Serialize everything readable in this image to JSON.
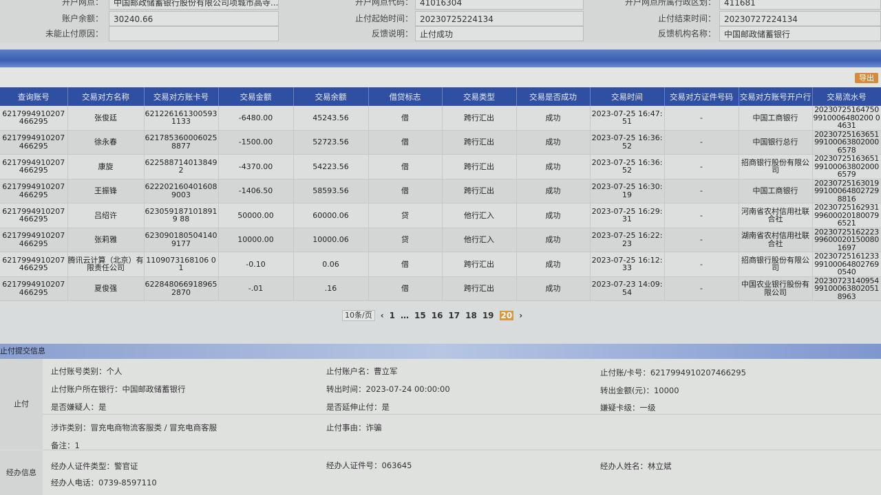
{
  "info": {
    "rows": [
      [
        {
          "label": "开户网点：",
          "value": "中国邮政储蓄银行股份有限公司项城市高寺..."
        },
        {
          "label": "开户网点代码：",
          "value": "41016304"
        },
        {
          "label": "开户网点所属行政区划：",
          "value": "411681"
        }
      ],
      [
        {
          "label": "账户余额：",
          "value": "30240.66"
        },
        {
          "label": "止付起始时间：",
          "value": "20230725224134"
        },
        {
          "label": "止付结束时间：",
          "value": "20230727224134"
        }
      ],
      [
        {
          "label": "未能止付原因：",
          "value": ""
        },
        {
          "label": "反馈说明：",
          "value": "止付成功"
        },
        {
          "label": "反馈机构名称：",
          "value": "中国邮政储蓄银行"
        }
      ]
    ]
  },
  "toolbar": {
    "export_label": "导出"
  },
  "table": {
    "headers": [
      "查询账号",
      "交易对方名称",
      "交易对方账卡号",
      "交易金额",
      "交易余额",
      "借贷标志",
      "交易类型",
      "交易是否成功",
      "交易时间",
      "交易对方证件号码",
      "交易对方账号开户行",
      "交易流水号"
    ],
    "rows": [
      [
        "6217994910207466295",
        "张俊廷",
        "6212261613005931133",
        "-6480.00",
        "45243.56",
        "借",
        "跨行汇出",
        "成功",
        "2023-07-25 16:47:51",
        "-",
        "中国工商银行",
        "202307251647509910006480200 04631"
      ],
      [
        "6217994910207466295",
        "徐永春",
        "6217853600060258877",
        "-1500.00",
        "52723.56",
        "借",
        "跨行汇出",
        "成功",
        "2023-07-25 16:36:52",
        "-",
        "中国银行总行",
        "2023072516365199100063802000 6578"
      ],
      [
        "6217994910207466295",
        "康旋",
        "622588714013849 2",
        "-4370.00",
        "54223.56",
        "借",
        "跨行汇出",
        "成功",
        "2023-07-25 16:36:52",
        "-",
        "招商银行股份有限公司",
        "2023072516365199100063802000 6579"
      ],
      [
        "6217994910207466295",
        "王振锋",
        "6222021604016089003",
        "-1406.50",
        "58593.56",
        "借",
        "跨行汇出",
        "成功",
        "2023-07-25 16:30:19",
        "-",
        "中国工商银行",
        "2023072516301999100064802729 8816"
      ],
      [
        "6217994910207466295",
        "吕绍许",
        "6230591871018919 88",
        "50000.00",
        "60000.06",
        "贷",
        "他行汇入",
        "成功",
        "2023-07-25 16:29:31",
        "-",
        "河南省农村信用社联合社",
        "2023072516293199600020180079 6521"
      ],
      [
        "6217994910207466295",
        "张莉雅",
        "6230901805041409177",
        "10000.00",
        "10000.06",
        "贷",
        "他行汇入",
        "成功",
        "2023-07-25 16:22:23",
        "-",
        "湖南省农村信用社联合社",
        "2023072516222399600020150080 1697"
      ],
      [
        "6217994910207466295",
        "腾讯云计算（北京）有限责任公司",
        "1109073168106 01",
        "-0.10",
        "0.06",
        "借",
        "跨行汇出",
        "成功",
        "2023-07-25 16:12:33",
        "-",
        "招商银行股份有限公司",
        "2023072516123399100064802769 0540"
      ],
      [
        "6217994910207466295",
        "夏俊强",
        "6228480669189652870",
        "-.01",
        ".16",
        "借",
        "跨行汇出",
        "成功",
        "2023-07-23 14:09:54",
        "-",
        "中国农业银行股份有限公司",
        "2023072314095499100063802051 8963"
      ]
    ]
  },
  "pager": {
    "page_size": "10条/页",
    "pages": [
      "1",
      "…",
      "15",
      "16",
      "17",
      "18",
      "19",
      "20"
    ],
    "current": "20",
    "prev": "‹",
    "next": "›"
  },
  "section": {
    "title": "止付提交信息"
  },
  "detail": {
    "stop_label": "止付",
    "handler_label": "经办信息",
    "items": [
      "止付账号类别：个人",
      "止付账户名：曹立军",
      "止付账/卡号：6217994910207466295",
      "止付账户所在银行：中国邮政储蓄银行",
      "转出时间：2023-07-24 00:00:00",
      "转出金额(元)：10000",
      "是否嫌疑人：是",
      "是否延伸止付：是",
      "嫌疑卡级：一级",
      "涉诈类别：冒充电商物流客服类 / 冒充电商客服",
      "止付事由：诈骗",
      "备注：1",
      "经办人证件类型：警官证",
      "经办人证件号：063645",
      "经办人姓名：林立斌",
      "经办人电话：0739-8597110"
    ]
  }
}
